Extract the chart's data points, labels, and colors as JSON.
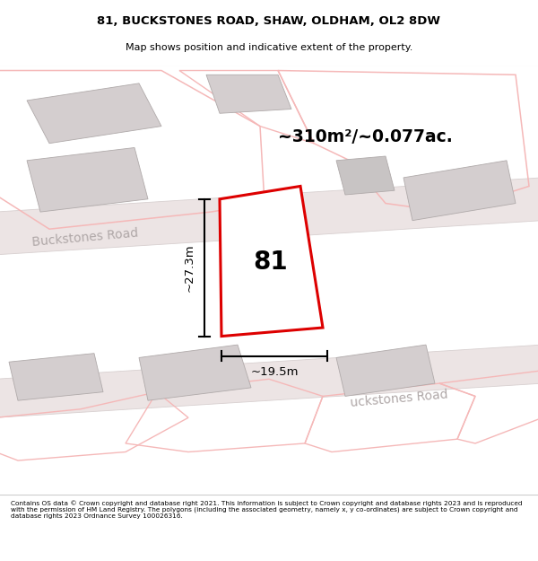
{
  "title": "81, BUCKSTONES ROAD, SHAW, OLDHAM, OL2 8DW",
  "subtitle": "Map shows position and indicative extent of the property.",
  "footer": "Contains OS data © Crown copyright and database right 2021. This information is subject to Crown copyright and database rights 2023 and is reproduced with the permission of HM Land Registry. The polygons (including the associated geometry, namely x, y co-ordinates) are subject to Crown copyright and database rights 2023 Ordnance Survey 100026316.",
  "area_label": "~310m²/~0.077ac.",
  "width_label": "~19.5m",
  "height_label": "~27.3m",
  "number_label": "81",
  "road_label_left": "Buckstones Road",
  "road_label_right": "uckstones Road",
  "map_bg": "#f9f6f6",
  "red_outline": "#dd0000",
  "light_red_line": "#f5b8b8",
  "building_gray": "#d4cecf",
  "building_gray2": "#c8c4c4",
  "road_fill": "#e8e0e0",
  "road_edge": "#d8cece"
}
